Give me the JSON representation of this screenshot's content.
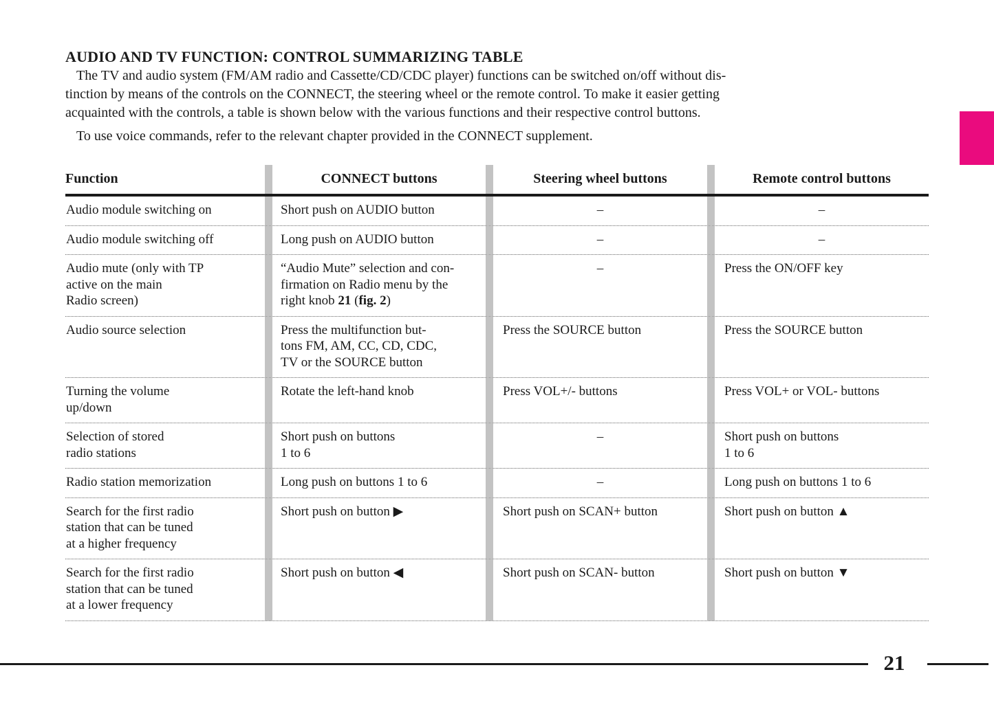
{
  "page": {
    "title": "AUDIO AND TV FUNCTION: CONTROL SUMMARIZING TABLE",
    "page_number": "21",
    "accent_color": "#EA0B7E"
  },
  "intro": {
    "p1": "The TV and audio system (FM/AM radio and Cassette/CD/CDC player) functions can be switched on/off without dis-\ntinction by means of the controls on the CONNECT, the steering wheel or the remote control. To make it easier getting\nacquainted with the controls, a table is shown below with the various functions and their respective control buttons.",
    "p2": "To use voice commands, refer to the relevant chapter provided in the CONNECT supplement."
  },
  "table": {
    "headers": {
      "function": "Function",
      "connect": "CONNECT buttons",
      "steering": "Steering wheel buttons",
      "remote": "Remote control buttons"
    },
    "rows": [
      {
        "function": "Audio module switching on",
        "connect": "Short push on AUDIO button",
        "steering": "–",
        "remote": "–"
      },
      {
        "function": "Audio module switching off",
        "connect": "Long push on AUDIO button",
        "steering": "–",
        "remote": "–"
      },
      {
        "function": "Audio mute (only with TP\nactive on the main\nRadio screen)",
        "connect_parts": {
          "pre": "“Audio Mute” selection and con-\nfirmation on Radio menu by the\nright knob ",
          "bold_ref": "21",
          "mid": " (",
          "bold_fig": "fig. 2",
          "post": ")"
        },
        "steering": "–",
        "remote": "Press the ON/OFF key"
      },
      {
        "function": "Audio source selection",
        "connect": "Press the multifunction but-\ntons FM, AM, CC, CD, CDC,\nTV or the SOURCE button",
        "steering": "Press the SOURCE button",
        "remote": "Press the SOURCE button"
      },
      {
        "function": "Turning the volume\nup/down",
        "connect": "Rotate the left-hand knob",
        "steering": "Press VOL+/- buttons",
        "remote": "Press VOL+ or VOL- buttons"
      },
      {
        "function": "Selection of stored\nradio stations",
        "connect": "Short push on buttons\n1 to 6",
        "steering": "–",
        "remote": "Short push on buttons\n1 to 6"
      },
      {
        "function": "Radio station memorization",
        "connect": "Long push on buttons 1 to 6",
        "steering": "–",
        "remote": "Long push on buttons 1 to 6"
      },
      {
        "function": "Search for the first radio\nstation that can be tuned\nat a higher frequency",
        "connect": "Short push on button ▶",
        "steering": "Short push on SCAN+ button",
        "remote": "Short push on button ▲"
      },
      {
        "function": "Search for the first radio\nstation that can be tuned\nat a lower frequency",
        "connect": "Short push on button ◀",
        "steering": "Short push on SCAN- button",
        "remote": "Short push on button ▼"
      }
    ]
  }
}
